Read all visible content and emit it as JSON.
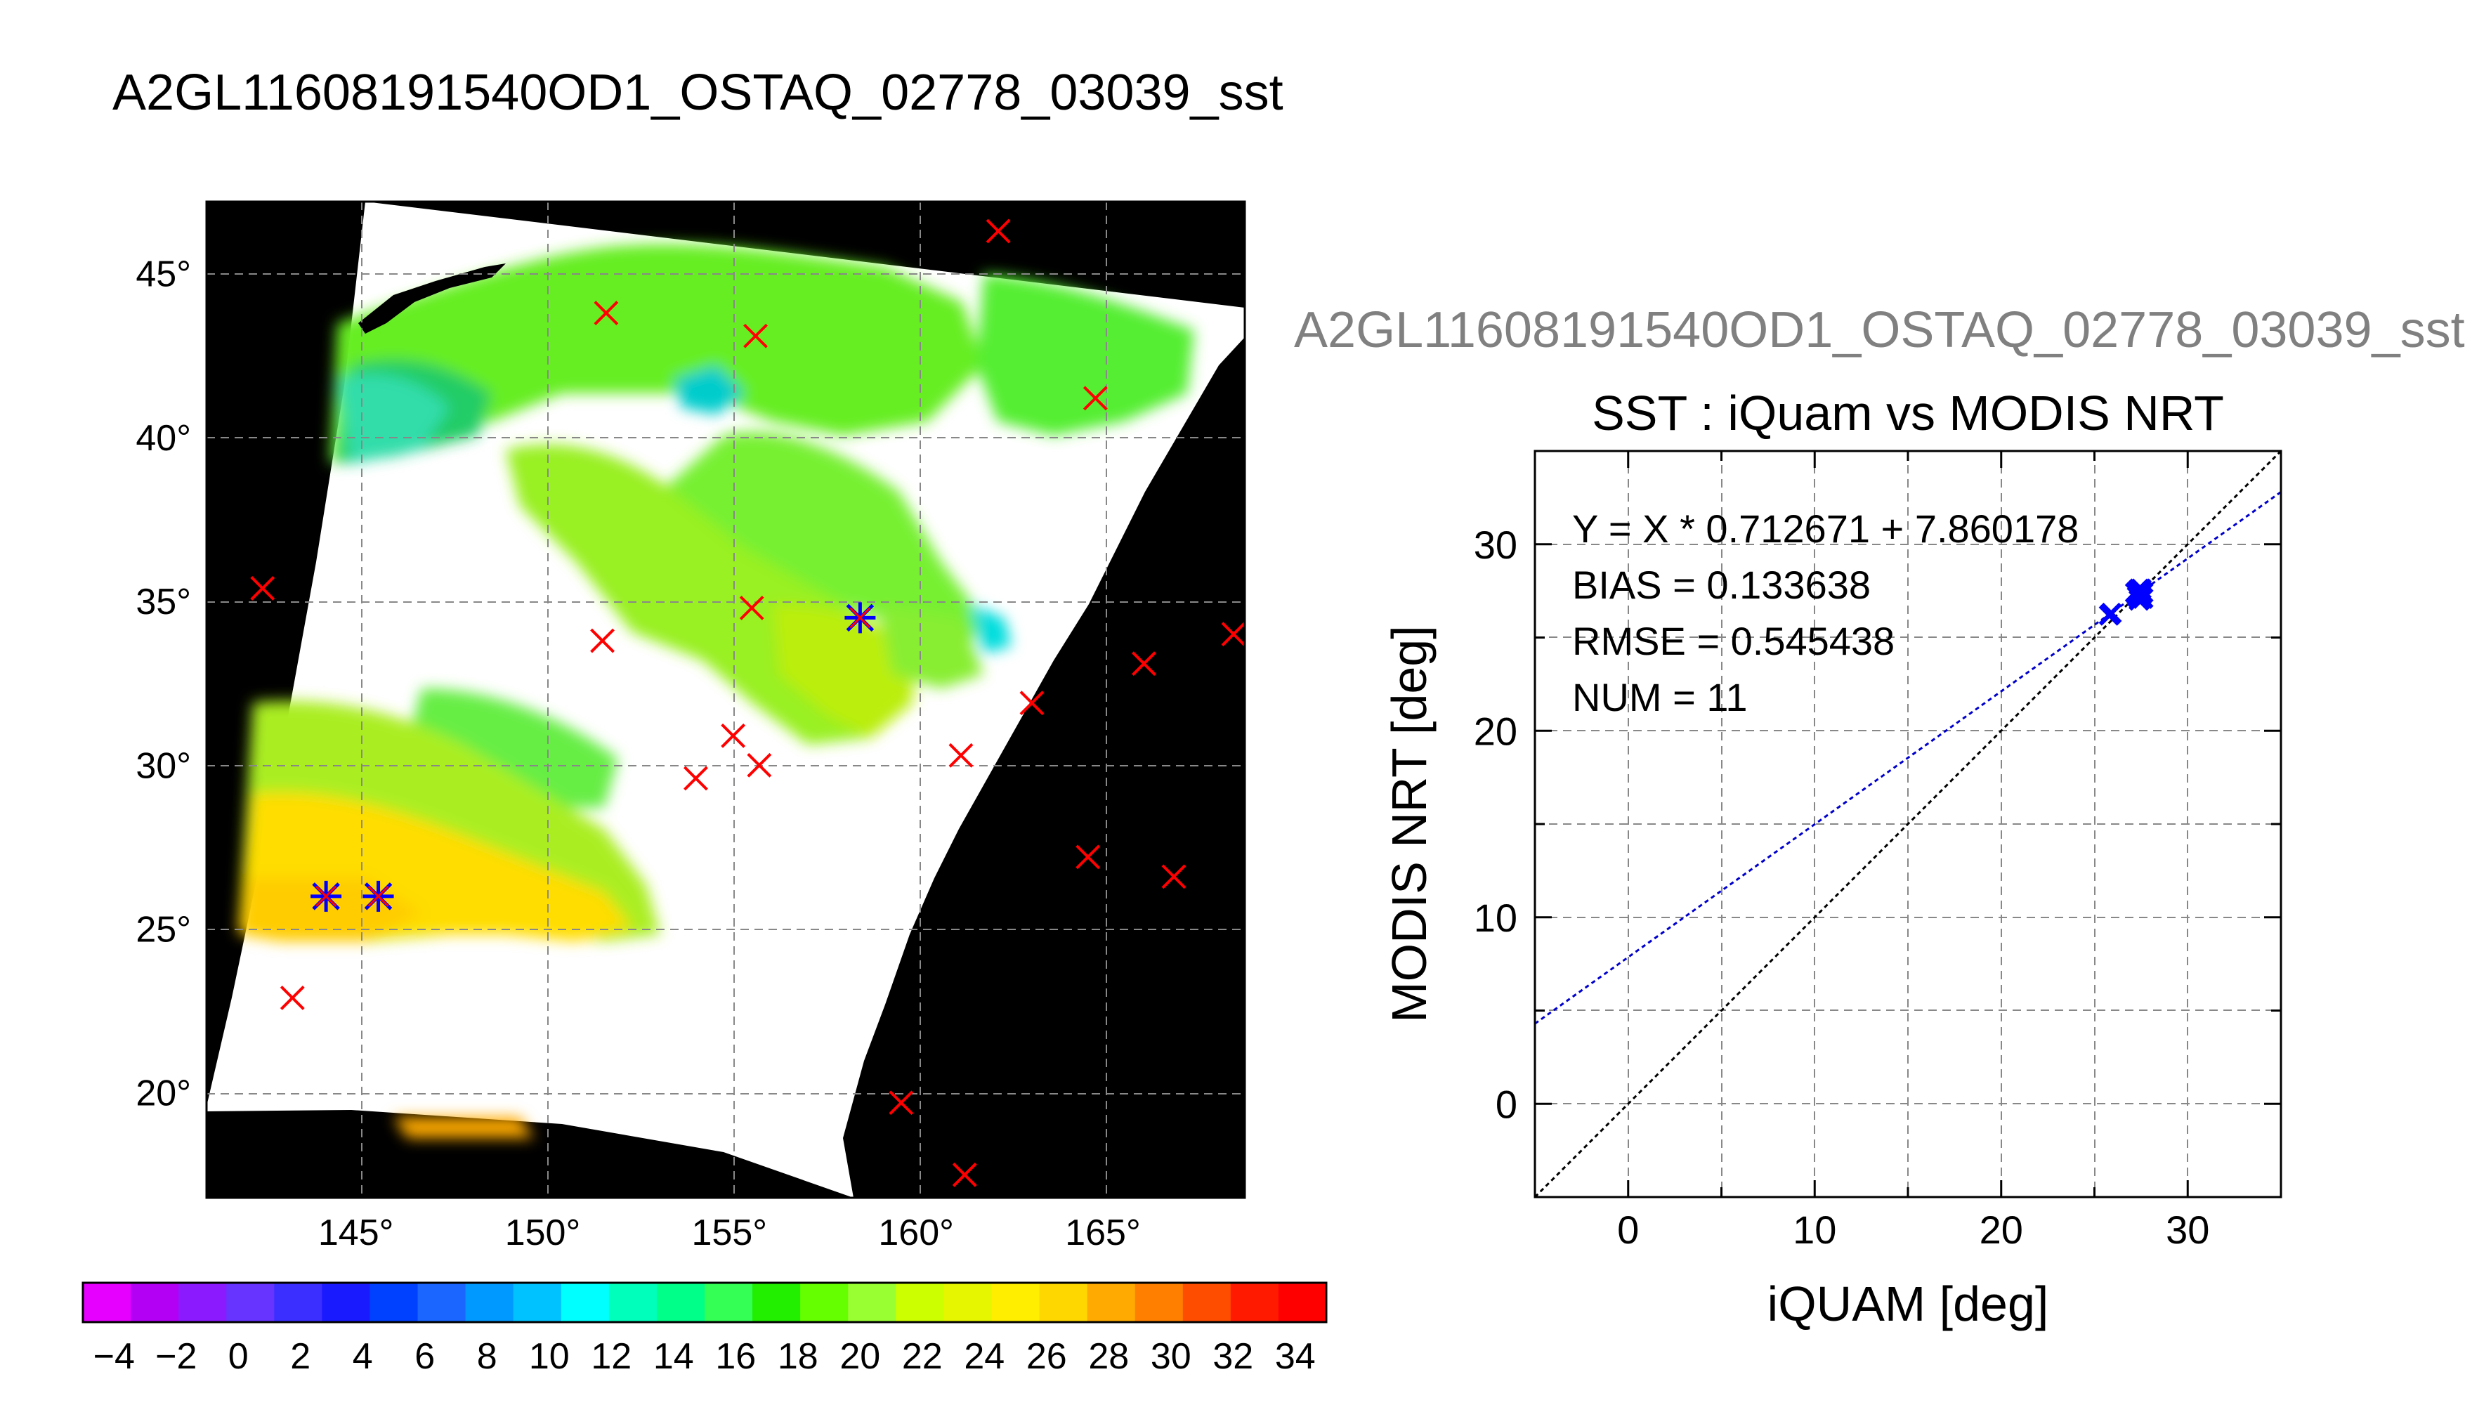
{
  "header": {
    "title": "A2GL11608191540OD1_OSTAQ_02778_03039_sst"
  },
  "overlay": {
    "title": "A2GL11608191540OD1_OSTAQ_02778_03039_sst"
  },
  "colors": {
    "red_marker": "#ff0000",
    "blue_marker": "#0000ff",
    "fit_line": "#0000cc",
    "identity_line": "#000000",
    "no_data": "#000000",
    "cloud": "#ffffff"
  },
  "map": {
    "lat_ticks": [
      {
        "value": 45,
        "label": "45°"
      },
      {
        "value": 40,
        "label": "40°"
      },
      {
        "value": 35,
        "label": "35°"
      },
      {
        "value": 30,
        "label": "30°"
      },
      {
        "value": 25,
        "label": "25°"
      },
      {
        "value": 20,
        "label": "20°"
      }
    ],
    "lon_ticks": [
      {
        "value": 145,
        "label": "145°"
      },
      {
        "value": 150,
        "label": "150°"
      },
      {
        "value": 155,
        "label": "155°"
      },
      {
        "value": 160,
        "label": "160°"
      },
      {
        "value": 165,
        "label": "165°"
      }
    ],
    "lon_range": [
      141,
      168.8
    ],
    "lat_range": [
      16.8,
      47.2
    ],
    "red_markers": [
      {
        "lon": 162.2,
        "lat": 46.3
      },
      {
        "lon": 151.7,
        "lat": 43.8
      },
      {
        "lon": 155.7,
        "lat": 43.1
      },
      {
        "lon": 164.8,
        "lat": 41.2
      },
      {
        "lon": 142.5,
        "lat": 35.4
      },
      {
        "lon": 155.6,
        "lat": 34.8
      },
      {
        "lon": 168.5,
        "lat": 34.0
      },
      {
        "lon": 151.6,
        "lat": 33.8
      },
      {
        "lon": 166.1,
        "lat": 33.1
      },
      {
        "lon": 163.1,
        "lat": 31.9
      },
      {
        "lon": 155.1,
        "lat": 30.9
      },
      {
        "lon": 161.2,
        "lat": 30.3
      },
      {
        "lon": 155.8,
        "lat": 30.0
      },
      {
        "lon": 154.1,
        "lat": 29.6
      },
      {
        "lon": 164.6,
        "lat": 27.2
      },
      {
        "lon": 166.9,
        "lat": 26.6
      },
      {
        "lon": 143.3,
        "lat": 22.9
      },
      {
        "lon": 159.6,
        "lat": 19.7
      },
      {
        "lon": 161.3,
        "lat": 17.5
      }
    ],
    "blue_markers": [
      {
        "lon": 158.5,
        "lat": 34.5
      },
      {
        "lon": 144.2,
        "lat": 26.0
      },
      {
        "lon": 145.6,
        "lat": 26.0
      }
    ]
  },
  "colorbar": {
    "labels": [
      "−4",
      "−2",
      "0",
      "2",
      "4",
      "6",
      "8",
      "10",
      "12",
      "14",
      "16",
      "18",
      "20",
      "22",
      "24",
      "26",
      "28",
      "30",
      "32",
      "34"
    ],
    "range": [
      -5,
      35
    ],
    "colors": [
      "#e600ff",
      "#b300f5",
      "#8c1aff",
      "#6633ff",
      "#3b2fff",
      "#1a1aff",
      "#0040ff",
      "#1a66ff",
      "#0099ff",
      "#00c2ff",
      "#00ffff",
      "#00ffbb",
      "#00ff88",
      "#33ff55",
      "#22ee00",
      "#66ff00",
      "#99ff33",
      "#ccff00",
      "#e6f500",
      "#ffee00",
      "#ffd700",
      "#ffaa00",
      "#ff8000",
      "#ff4d00",
      "#ff1a00",
      "#ff0000"
    ]
  },
  "chart_data": {
    "type": "scatter",
    "title": "SST : iQuam vs MODIS NRT",
    "xlabel": "iQUAM [deg]",
    "ylabel": "MODIS NRT [deg]",
    "xlim": [
      -5,
      35
    ],
    "ylim": [
      -5,
      35
    ],
    "xticks": [
      0,
      10,
      20,
      30
    ],
    "yticks": [
      0,
      10,
      20,
      30
    ],
    "grid": true,
    "annotations": [
      "Y = X * 0.712671 + 7.860178",
      "BIAS = 0.133638",
      "RMSE = 0.545438",
      "NUM = 11"
    ],
    "fit": {
      "slope": 0.712671,
      "intercept": 7.860178
    },
    "points": [
      {
        "x": 25.8,
        "y": 26.2
      },
      {
        "x": 25.9,
        "y": 26.3
      },
      {
        "x": 27.3,
        "y": 27.5
      },
      {
        "x": 27.5,
        "y": 27.3
      },
      {
        "x": 27.4,
        "y": 27.6
      },
      {
        "x": 27.6,
        "y": 27.1
      },
      {
        "x": 27.2,
        "y": 27.4
      },
      {
        "x": 27.5,
        "y": 27.6
      },
      {
        "x": 27.3,
        "y": 27.2
      },
      {
        "x": 27.6,
        "y": 27.4
      },
      {
        "x": 27.4,
        "y": 27.0
      }
    ]
  }
}
